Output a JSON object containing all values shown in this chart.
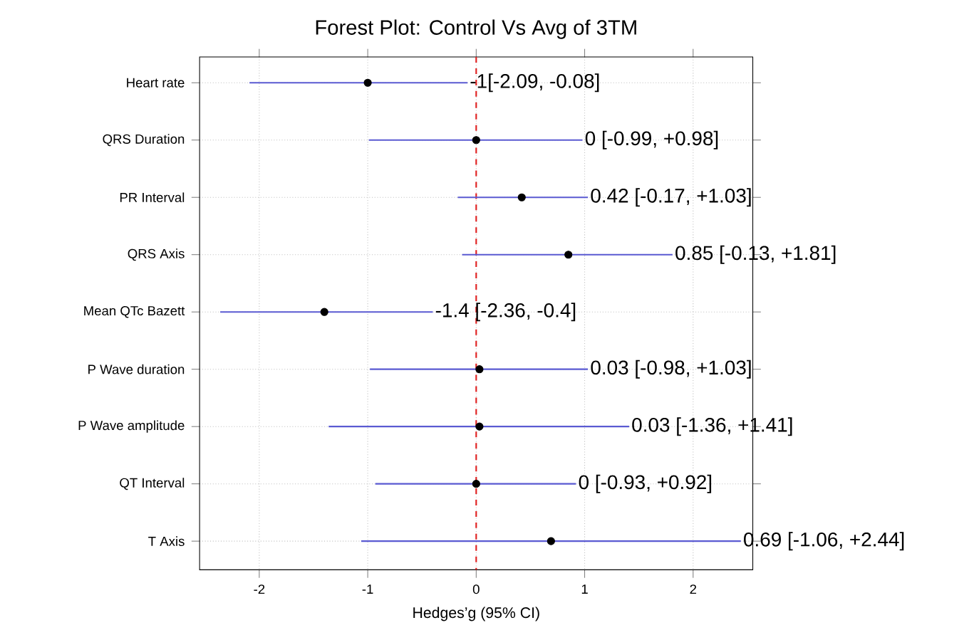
{
  "chart_data": {
    "type": "scatter",
    "orientation": "horizontal",
    "title": "Forest Plot: Control Vs Avg of 3TM",
    "xlabel": "Hedges’g (95% CI)",
    "categories": [
      "Heart rate",
      "QRS Duration",
      "PR Interval",
      "QRS Axis",
      "Mean QTc Bazett",
      "P Wave duration",
      "P Wave amplitude",
      "QT Interval",
      "T Axis"
    ],
    "series": [
      {
        "color": "#000000",
        "values": [
          -1,
          0,
          0.42,
          0.85,
          -1.4,
          0.03,
          0.03,
          0,
          0.69
        ],
        "errors": [
          [
            -2.09,
            -0.08
          ],
          [
            -0.99,
            0.98
          ],
          [
            -0.17,
            1.03
          ],
          [
            -0.13,
            1.81
          ],
          [
            -2.36,
            -0.4
          ],
          [
            -0.98,
            1.03
          ],
          [
            -1.36,
            1.41
          ],
          [
            -0.93,
            0.92
          ],
          [
            -1.06,
            2.44
          ]
        ]
      }
    ],
    "annotations": [
      "-1[-2.09, -0.08]",
      "0 [-0.99, +0.98]",
      "0.42 [-0.17, +1.03]",
      "0.85 [-0.13, +1.81]",
      "-1.4 [-2.36, -0.4]",
      "0.03 [-0.98, +1.03]",
      "0.03 [-1.36, +1.41]",
      "0 [-0.93, +0.92]",
      "0.69 [-1.06, +2.44]"
    ],
    "xlim": [
      -2.55,
      2.55
    ],
    "xticks": [
      -2,
      -1,
      0,
      1,
      2
    ],
    "ref_lines": [
      {
        "axis": "x",
        "value": 0,
        "color": "#e02020",
        "line_style": "dashed"
      }
    ],
    "grid": true
  }
}
